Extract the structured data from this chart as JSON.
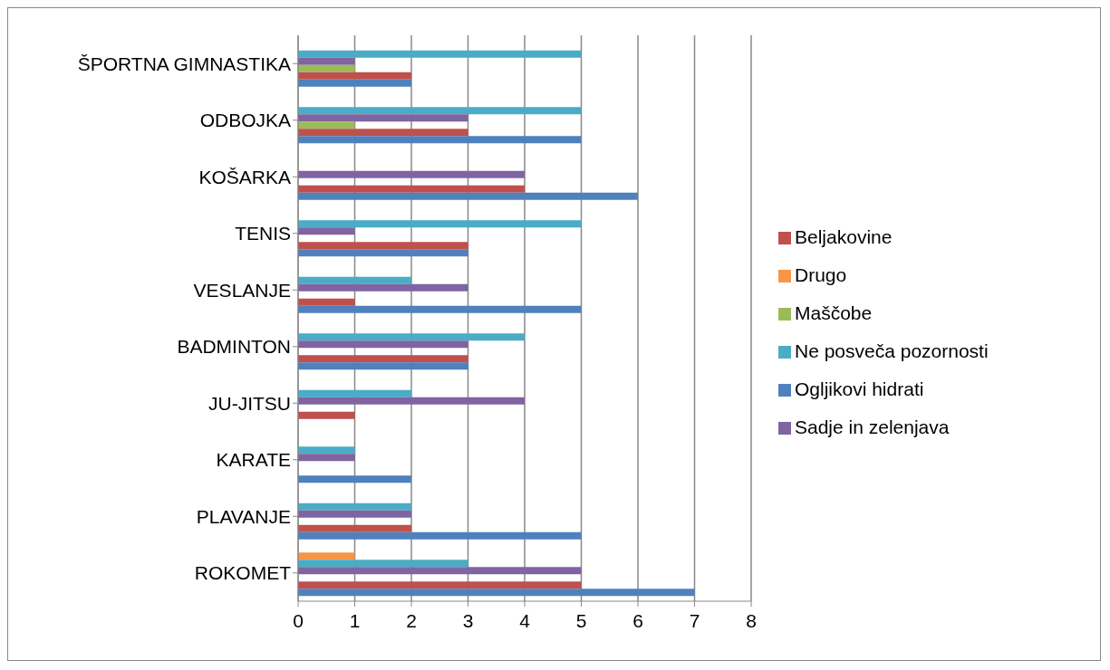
{
  "chart_data": {
    "type": "bar",
    "orientation": "horizontal",
    "categories": [
      "ŠPORTNA GIMNASTIKA",
      "ODBOJKA",
      "KOŠARKA",
      "TENIS",
      "VESLANJE",
      "BADMINTON",
      "JU-JITSU",
      "KARATE",
      "PLAVANJE",
      "ROKOMET"
    ],
    "series": [
      {
        "name": "Drugo",
        "color": "#f79646",
        "values": [
          0,
          0,
          0,
          0,
          0,
          0,
          0,
          0,
          0,
          1
        ]
      },
      {
        "name": "Ne posveča pozornosti",
        "color": "#4bacc6",
        "values": [
          5,
          5,
          0,
          5,
          2,
          4,
          2,
          1,
          2,
          3
        ]
      },
      {
        "name": "Sadje in zelenjava",
        "color": "#8064a2",
        "values": [
          1,
          3,
          4,
          1,
          3,
          3,
          4,
          1,
          2,
          5
        ]
      },
      {
        "name": "Maščobe",
        "color": "#9bbb59",
        "values": [
          1,
          1,
          0,
          0,
          0,
          0,
          0,
          0,
          0,
          0
        ]
      },
      {
        "name": "Beljakovine",
        "color": "#c0504d",
        "values": [
          2,
          3,
          4,
          3,
          1,
          3,
          1,
          0,
          2,
          5
        ]
      },
      {
        "name": "Ogljikovi hidrati",
        "color": "#4f81bd",
        "values": [
          2,
          5,
          6,
          3,
          5,
          3,
          0,
          2,
          5,
          7
        ]
      }
    ],
    "xlim": [
      0,
      8
    ],
    "xticks": [
      0,
      1,
      2,
      3,
      4,
      5,
      6,
      7,
      8
    ],
    "grid": "x",
    "legend": "right"
  }
}
